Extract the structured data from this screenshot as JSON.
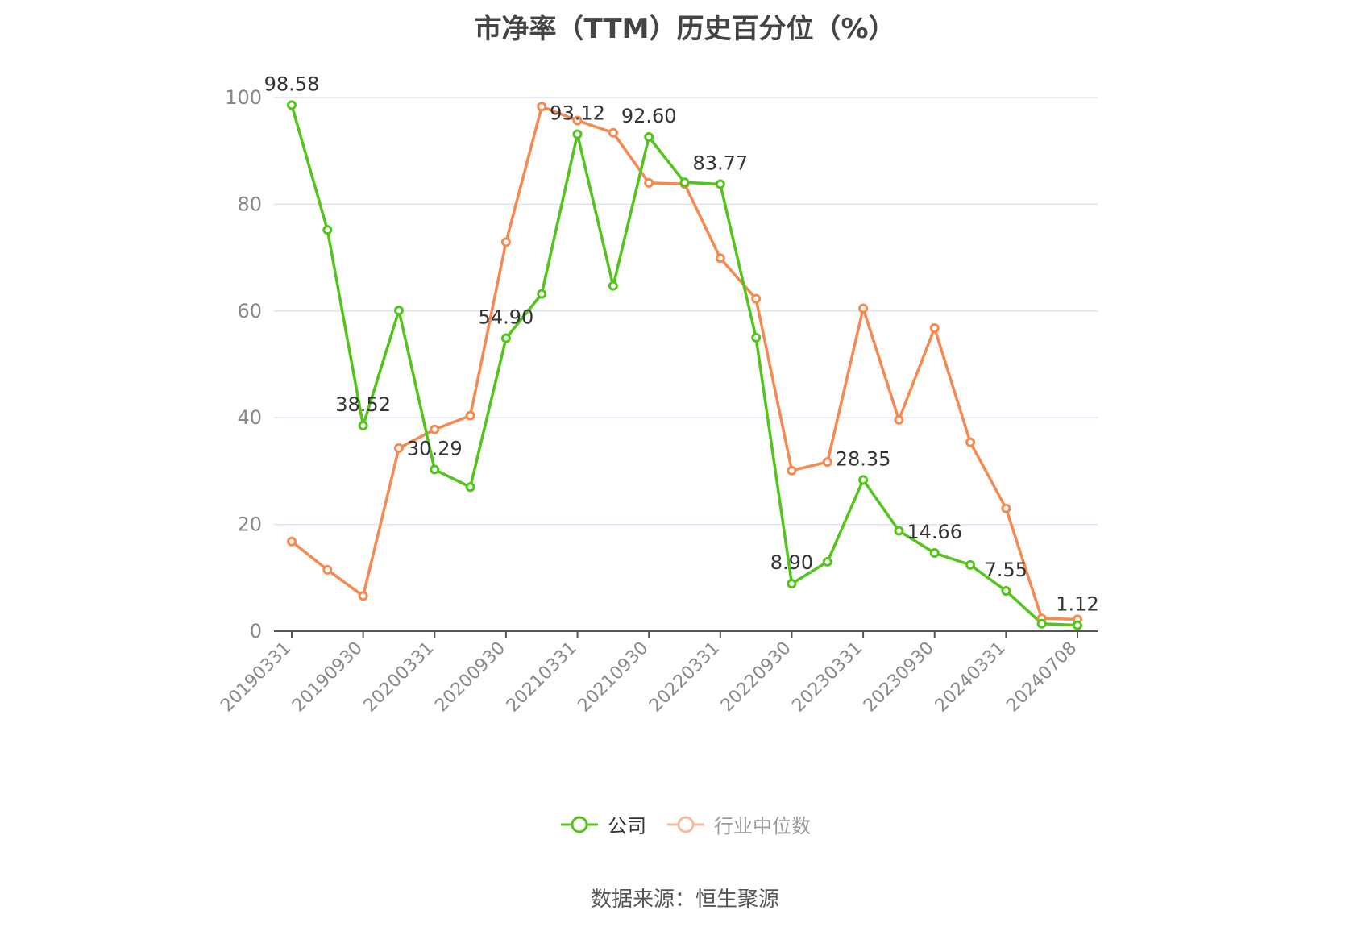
{
  "title": "市净率（TTM）历史百分位（%）",
  "source": "数据来源：恒生聚源",
  "colors": {
    "company": "#52c41a",
    "industry": "#f5894f",
    "grid": "#dde3f0",
    "axis": "#555555",
    "tick_text": "#888888",
    "label_text": "#333333"
  },
  "chart_data": {
    "type": "line",
    "title": "市净率（TTM）历史百分位（%）",
    "ylim": [
      0,
      100
    ],
    "yticks": [
      0,
      20,
      40,
      60,
      80,
      100
    ],
    "grid": true,
    "legend_position": "bottom-center",
    "x_points": [
      "20190331",
      "20190630",
      "20190930",
      "20191231",
      "20200331",
      "20200630",
      "20200930",
      "20201231",
      "20210331",
      "20210630",
      "20210930",
      "20211231",
      "20220331",
      "20220630",
      "20220930",
      "20221231",
      "20230331",
      "20230630",
      "20230930",
      "20231231",
      "20240331",
      "20240630",
      "20240708"
    ],
    "x_tick_labels": [
      "20190331",
      "20190930",
      "20200331",
      "20200930",
      "20210331",
      "20210930",
      "20220331",
      "20220930",
      "20230331",
      "20230930",
      "20240331",
      "20240708"
    ],
    "series": [
      {
        "name": "公司",
        "color": "#52c41a",
        "values": [
          98.58,
          75.2,
          38.52,
          60.1,
          30.29,
          27.0,
          54.9,
          63.2,
          93.12,
          64.7,
          92.6,
          84.1,
          83.77,
          55.0,
          8.9,
          13.0,
          28.35,
          18.8,
          14.66,
          12.4,
          7.55,
          1.4,
          1.12
        ],
        "labeled_points": [
          {
            "index": 0,
            "text": "98.58"
          },
          {
            "index": 2,
            "text": "38.52"
          },
          {
            "index": 4,
            "text": "30.29"
          },
          {
            "index": 6,
            "text": "54.90"
          },
          {
            "index": 8,
            "text": "93.12"
          },
          {
            "index": 10,
            "text": "92.60"
          },
          {
            "index": 12,
            "text": "83.77"
          },
          {
            "index": 14,
            "text": "8.90"
          },
          {
            "index": 16,
            "text": "28.35"
          },
          {
            "index": 18,
            "text": "14.66"
          },
          {
            "index": 20,
            "text": "7.55"
          },
          {
            "index": 22,
            "text": "1.12"
          }
        ]
      },
      {
        "name": "行业中位数",
        "color": "#f5894f",
        "values": [
          16.8,
          11.5,
          6.6,
          34.3,
          37.8,
          40.4,
          72.9,
          98.3,
          95.7,
          93.4,
          84.0,
          83.8,
          69.9,
          62.3,
          30.1,
          31.7,
          60.5,
          39.6,
          56.8,
          35.4,
          23.0,
          2.4,
          2.2
        ]
      }
    ]
  }
}
